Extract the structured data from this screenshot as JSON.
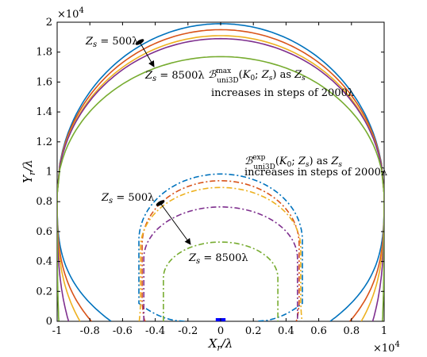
{
  "chart_data": {
    "type": "line",
    "title": "",
    "xlabel": "X_r/λ",
    "ylabel": "Y_r/λ",
    "x_multiplier": "×10^4",
    "y_multiplier": "×10^4",
    "xlim": [
      -1,
      1
    ],
    "ylim": [
      0,
      2
    ],
    "x_ticks": [
      "-1",
      "-0.8",
      "-0.6",
      "-0.4",
      "-0.2",
      "0",
      "0.2",
      "0.4",
      "0.6",
      "0.8",
      "1"
    ],
    "y_ticks": [
      "0",
      "0.2",
      "0.4",
      "0.6",
      "0.8",
      "1",
      "1.2",
      "1.4",
      "1.6",
      "1.8",
      "2"
    ],
    "grid": false,
    "series_groups": [
      {
        "group": "max",
        "style": "solid",
        "description_line1": "ℬ_uni3D^max(K_0; Z_s) as Z_s",
        "description_line2": "increases in steps of 2000λ",
        "series": [
          {
            "Zs": 500,
            "color": "#0072BD",
            "top": 1.99,
            "foot": 0.67
          },
          {
            "Zs": 2500,
            "color": "#D95319",
            "top": 1.95,
            "foot": 0.79
          },
          {
            "Zs": 4500,
            "color": "#EDB120",
            "top": 1.91,
            "foot": 0.86
          },
          {
            "Zs": 6500,
            "color": "#7E2F8E",
            "top": 1.89,
            "foot": 0.93
          },
          {
            "Zs": 8500,
            "color": "#77AC30",
            "top": 1.77,
            "foot": 0.99
          }
        ]
      },
      {
        "group": "exp",
        "style": "dashdot",
        "description_line1": "ℬ_uni3D^exp(K_0; Z_s) as Z_s",
        "description_line2": "increases in steps of 2000λ",
        "series": [
          {
            "Zs": 500,
            "color": "#0072BD",
            "top": 0.985,
            "width": 0.5,
            "foot_inner": 0.22
          },
          {
            "Zs": 2500,
            "color": "#D95319",
            "top": 0.94,
            "width": 0.48,
            "foot_inner": 0.46
          },
          {
            "Zs": 4500,
            "color": "#EDB120",
            "top": 0.895,
            "width": 0.49,
            "foot_inner": 0.5
          },
          {
            "Zs": 6500,
            "color": "#7E2F8E",
            "top": 0.765,
            "width": 0.47,
            "foot_inner": 0.47
          },
          {
            "Zs": 8500,
            "color": "#77AC30",
            "top": 0.53,
            "width": 0.35,
            "foot_inner": 0.35
          }
        ]
      }
    ],
    "annotations": [
      {
        "label_prefix": "Z_s = ",
        "label_value": "500λ",
        "role": "max-start"
      },
      {
        "label_prefix": "Z_s = ",
        "label_value": "8500λ",
        "role": "max-end"
      },
      {
        "label_prefix": "Z_s = ",
        "label_value": "500λ",
        "role": "exp-start"
      },
      {
        "label_prefix": "Z_s = ",
        "label_value": "8500λ",
        "role": "exp-end"
      }
    ],
    "marker": {
      "x_range": [
        -0.03,
        0.03
      ],
      "y": 0,
      "color": "#0000FF"
    }
  }
}
